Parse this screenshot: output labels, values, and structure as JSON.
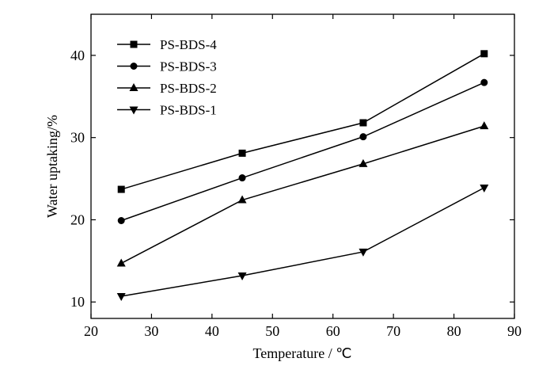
{
  "chart_data": {
    "type": "line",
    "xlabel": "Temperature / ℃",
    "ylabel": "Water uptaking/%",
    "xlim": [
      20,
      90
    ],
    "ylim": [
      8,
      45
    ],
    "xticks": [
      20,
      30,
      40,
      50,
      60,
      70,
      80,
      90
    ],
    "yticks": [
      10,
      20,
      30,
      40
    ],
    "grid": false,
    "legend_position": "top-left",
    "x": [
      25,
      45,
      65,
      85
    ],
    "series": [
      {
        "name": "PS-BDS-4",
        "marker": "square",
        "values": [
          23.7,
          28.1,
          31.8,
          40.2
        ]
      },
      {
        "name": "PS-BDS-3",
        "marker": "circle",
        "values": [
          19.9,
          25.1,
          30.1,
          36.7
        ]
      },
      {
        "name": "PS-BDS-2",
        "marker": "triangle-up",
        "values": [
          14.7,
          22.4,
          26.8,
          31.4
        ]
      },
      {
        "name": "PS-BDS-1",
        "marker": "triangle-down",
        "values": [
          10.7,
          13.2,
          16.1,
          23.9
        ]
      }
    ]
  }
}
